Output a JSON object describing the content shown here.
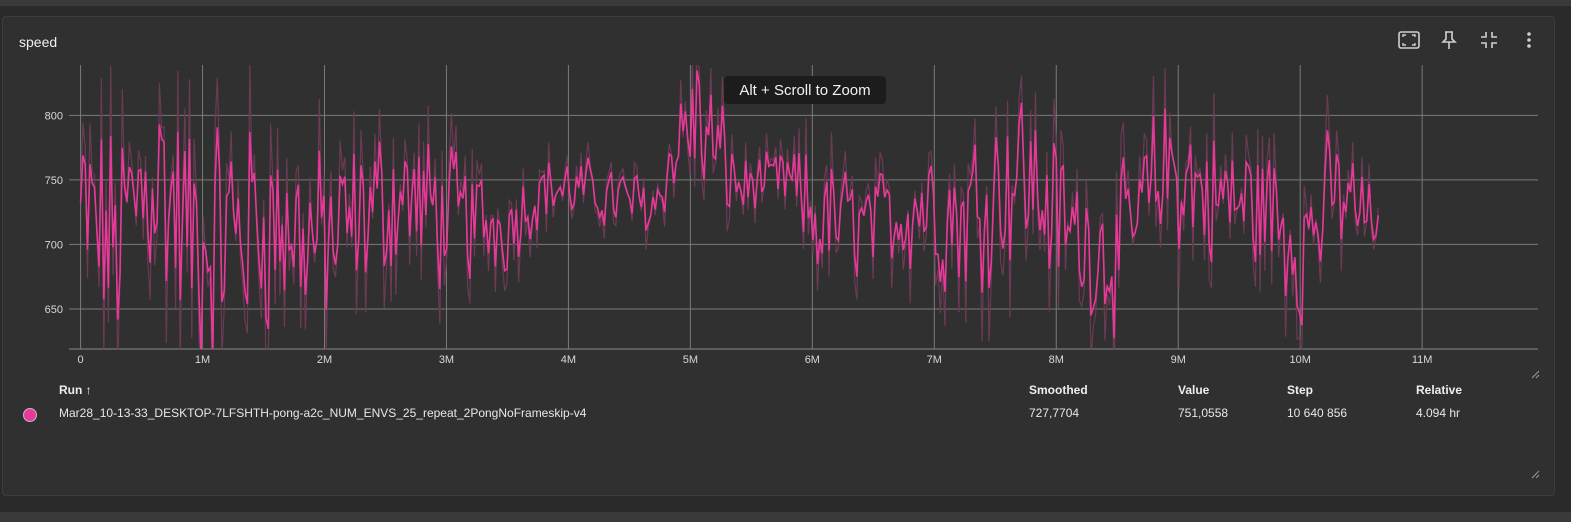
{
  "panel": {
    "title": "speed",
    "actions": [
      "fullscreen-icon",
      "pin-icon",
      "collapse-icon",
      "more-vert-icon"
    ],
    "zoom_hint": "Alt + Scroll to Zoom"
  },
  "colors": {
    "series": "#e8399a",
    "raw": "#6b3a55",
    "grid": "#7a7a7a",
    "background": "#303030"
  },
  "chart_data": {
    "type": "line",
    "title": "",
    "xlabel": "",
    "ylabel": "",
    "xlim": [
      -95000,
      11950000
    ],
    "ylim": [
      619,
      839
    ],
    "x_ticks": [
      0,
      1000000,
      2000000,
      3000000,
      4000000,
      5000000,
      6000000,
      7000000,
      8000000,
      9000000,
      10000000,
      11000000
    ],
    "x_tick_labels": [
      "0",
      "1M",
      "2M",
      "3M",
      "4M",
      "5M",
      "6M",
      "7M",
      "8M",
      "9M",
      "10M",
      "11M"
    ],
    "y_ticks": [
      650,
      700,
      750,
      800
    ],
    "y_tick_labels": [
      "650",
      "700",
      "750",
      "800"
    ],
    "grid": true,
    "series": [
      {
        "name": "Mar28_10-13-33_DESKTOP-7LFSHTH-pong-a2c_NUM_ENVS_25_repeat_2PongNoFrameskip-v4",
        "x_start": 0,
        "x_end": 10640856,
        "smoothed_segments": [
          [
            0,
            720
          ],
          [
            300000,
            700
          ],
          [
            600000,
            760
          ],
          [
            900000,
            700
          ],
          [
            1500000,
            720
          ],
          [
            2000000,
            700
          ],
          [
            2600000,
            740
          ],
          [
            3000000,
            720
          ],
          [
            3500000,
            715
          ],
          [
            3800000,
            745
          ],
          [
            4200000,
            740
          ],
          [
            4700000,
            730
          ],
          [
            5000000,
            800
          ],
          [
            5400000,
            745
          ],
          [
            5800000,
            750
          ],
          [
            6000000,
            720
          ],
          [
            6500000,
            715
          ],
          [
            6900000,
            735
          ],
          [
            7200000,
            720
          ],
          [
            7700000,
            760
          ],
          [
            8100000,
            710
          ],
          [
            8500000,
            690
          ],
          [
            8900000,
            760
          ],
          [
            9300000,
            735
          ],
          [
            9700000,
            730
          ],
          [
            10000000,
            700
          ],
          [
            10300000,
            740
          ],
          [
            10640856,
            715
          ]
        ],
        "amplitude": [
          [
            0,
            90
          ],
          [
            1000000,
            100
          ],
          [
            2000000,
            70
          ],
          [
            3000000,
            55
          ],
          [
            3800000,
            25
          ],
          [
            4800000,
            25
          ],
          [
            5000000,
            70
          ],
          [
            5500000,
            20
          ],
          [
            5800000,
            25
          ],
          [
            6000000,
            55
          ],
          [
            6500000,
            35
          ],
          [
            7000000,
            60
          ],
          [
            7600000,
            70
          ],
          [
            8300000,
            55
          ],
          [
            9000000,
            60
          ],
          [
            9600000,
            55
          ],
          [
            10000000,
            60
          ],
          [
            10400000,
            45
          ],
          [
            10640856,
            20
          ]
        ]
      }
    ]
  },
  "table": {
    "headers": {
      "run": "Run ↑",
      "smoothed": "Smoothed",
      "value": "Value",
      "step": "Step",
      "relative": "Relative"
    },
    "rows": [
      {
        "run": "Mar28_10-13-33_DESKTOP-7LFSHTH-pong-a2c_NUM_ENVS_25_repeat_2PongNoFrameskip-v4",
        "smoothed": "727,7704",
        "value": "751,0558",
        "step": "10 640 856",
        "relative": "4.094 hr",
        "color": "#e8399a"
      }
    ]
  }
}
